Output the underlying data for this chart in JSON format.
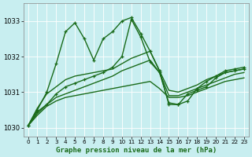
{
  "title": "Graphe pression niveau de la mer (hPa)",
  "bg_color": "#c8eef0",
  "grid_color": "#ffffff",
  "line_color": "#1a6b1a",
  "xlim": [
    -0.5,
    23.5
  ],
  "ylim": [
    1029.75,
    1033.5
  ],
  "yticks": [
    1030,
    1031,
    1032,
    1033
  ],
  "xticks": [
    0,
    1,
    2,
    3,
    4,
    5,
    6,
    7,
    8,
    9,
    10,
    11,
    12,
    13,
    14,
    15,
    16,
    17,
    18,
    19,
    20,
    21,
    22,
    23
  ],
  "series": [
    {
      "y": [
        1030.05,
        1030.35,
        1030.6,
        1030.75,
        1030.85,
        1030.9,
        1030.95,
        1031.0,
        1031.05,
        1031.1,
        1031.15,
        1031.2,
        1031.25,
        1031.3,
        1031.1,
        1030.85,
        1030.85,
        1030.9,
        1031.0,
        1031.1,
        1031.2,
        1031.3,
        1031.35,
        1031.4
      ],
      "marker": false,
      "lw": 1.0
    },
    {
      "y": [
        1030.05,
        1030.4,
        1030.65,
        1030.85,
        1030.95,
        1031.05,
        1031.15,
        1031.25,
        1031.35,
        1031.45,
        1031.6,
        1031.7,
        1031.8,
        1031.9,
        1031.55,
        1030.9,
        1030.9,
        1031.0,
        1031.1,
        1031.2,
        1031.3,
        1031.4,
        1031.5,
        1031.55
      ],
      "marker": false,
      "lw": 1.0
    },
    {
      "y": [
        1030.05,
        1030.55,
        1030.95,
        1031.15,
        1031.35,
        1031.45,
        1031.5,
        1031.55,
        1031.6,
        1031.65,
        1031.8,
        1031.95,
        1032.05,
        1032.15,
        1031.6,
        1031.05,
        1031.0,
        1031.1,
        1031.2,
        1031.35,
        1031.45,
        1031.55,
        1031.6,
        1031.65
      ],
      "marker": false,
      "lw": 1.0
    },
    {
      "y": [
        1030.05,
        1030.5,
        1031.0,
        1031.8,
        1032.7,
        1032.95,
        1032.5,
        1031.9,
        1032.5,
        1032.7,
        1033.0,
        1033.1,
        1032.65,
        1032.15,
        1031.6,
        1030.65,
        1030.65,
        1030.95,
        1031.05,
        1031.15,
        1031.4,
        1031.55,
        1031.6,
        1031.65
      ],
      "marker": true,
      "lw": 1.0
    },
    {
      "y": [
        1030.05,
        1030.45,
        1030.65,
        1030.95,
        1031.15,
        1031.25,
        1031.35,
        1031.45,
        1031.55,
        1031.7,
        1032.0,
        1033.05,
        1032.55,
        1031.85,
        1031.55,
        1030.7,
        1030.65,
        1030.75,
        1031.1,
        1031.3,
        1031.45,
        1031.6,
        1031.65,
        1031.7
      ],
      "marker": true,
      "lw": 1.0
    }
  ],
  "tick_fontsize": 6,
  "title_fontsize": 6.5
}
